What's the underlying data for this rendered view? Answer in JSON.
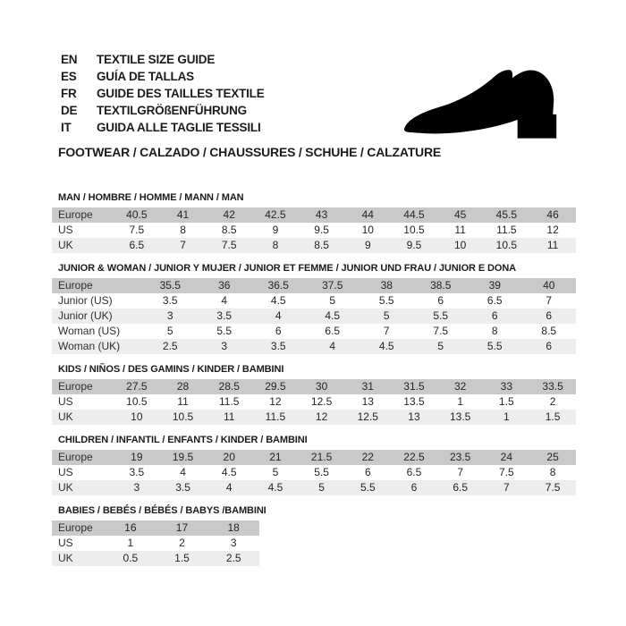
{
  "header": {
    "languages": [
      {
        "code": "EN",
        "text": "TEXTILE SIZE GUIDE"
      },
      {
        "code": "ES",
        "text": "GUÍA DE TALLAS"
      },
      {
        "code": "FR",
        "text": "GUIDE DES TAILLES TEXTILE"
      },
      {
        "code": "DE",
        "text": "TEXTILGRÖßENFÜHRUNG"
      },
      {
        "code": "IT",
        "text": "GUIDA ALLE TAGLIE TESSILI"
      }
    ],
    "subtitle": "FOOTWEAR / CALZADO / CHAUSSURES / SCHUHE / CALZATURE"
  },
  "icons": {
    "shoe": "dress-shoe-silhouette"
  },
  "colors": {
    "background": "#ffffff",
    "header_row_bg": "#c9c9c9",
    "alt_row_bg": "#ededed",
    "text": "#1c1c1c",
    "shoe": "#000000"
  },
  "tables": [
    {
      "title": "MAN / HOMBRE / HOMME / MANN / MAN",
      "header_label": "Europe",
      "header_values": [
        "40.5",
        "41",
        "42",
        "42.5",
        "43",
        "44",
        "44.5",
        "45",
        "45.5",
        "46"
      ],
      "rows": [
        {
          "label": "US",
          "values": [
            "7.5",
            "8",
            "8.5",
            "9",
            "9.5",
            "10",
            "10.5",
            "11",
            "11.5",
            "12"
          ]
        },
        {
          "label": "UK",
          "values": [
            "6.5",
            "7",
            "7.5",
            "8",
            "8.5",
            "9",
            "9.5",
            "10",
            "10.5",
            "11"
          ]
        }
      ]
    },
    {
      "title": "JUNIOR & WOMAN / JUNIOR Y MUJER / JUNIOR ET FEMME / JUNIOR UND FRAU / JUNIOR E DONA",
      "header_label": "Europe",
      "header_values": [
        "35.5",
        "36",
        "36.5",
        "37.5",
        "38",
        "38.5",
        "39",
        "40"
      ],
      "rows": [
        {
          "label": "Junior (US)",
          "values": [
            "3.5",
            "4",
            "4.5",
            "5",
            "5.5",
            "6",
            "6.5",
            "7"
          ]
        },
        {
          "label": "Junior (UK)",
          "values": [
            "3",
            "3.5",
            "4",
            "4.5",
            "5",
            "5.5",
            "6",
            "6"
          ]
        },
        {
          "label": "Woman (US)",
          "values": [
            "5",
            "5.5",
            "6",
            "6.5",
            "7",
            "7.5",
            "8",
            "8.5"
          ]
        },
        {
          "label": "Woman (UK)",
          "values": [
            "2.5",
            "3",
            "3.5",
            "4",
            "4.5",
            "5",
            "5.5",
            "6"
          ]
        }
      ]
    },
    {
      "title": "KIDS / NIÑOS / DES GAMINS / KINDER / BAMBINI",
      "header_label": "Europe",
      "header_values": [
        "27.5",
        "28",
        "28.5",
        "29.5",
        "30",
        "31",
        "31.5",
        "32",
        "33",
        "33.5"
      ],
      "rows": [
        {
          "label": "US",
          "values": [
            "10.5",
            "11",
            "11.5",
            "12",
            "12.5",
            "13",
            "13.5",
            "1",
            "1.5",
            "2"
          ]
        },
        {
          "label": "UK",
          "values": [
            "10",
            "10.5",
            "11",
            "11.5",
            "12",
            "12.5",
            "13",
            "13.5",
            "1",
            "1.5"
          ]
        }
      ]
    },
    {
      "title": "CHILDREN / INFANTIL / ENFANTS / KINDER / BAMBINI",
      "header_label": "Europe",
      "header_values": [
        "19",
        "19.5",
        "20",
        "21",
        "21.5",
        "22",
        "22.5",
        "23.5",
        "24",
        "25"
      ],
      "rows": [
        {
          "label": "US",
          "values": [
            "3.5",
            "4",
            "4.5",
            "5",
            "5.5",
            "6",
            "6.5",
            "7",
            "7.5",
            "8"
          ]
        },
        {
          "label": "UK",
          "values": [
            "3",
            "3.5",
            "4",
            "4.5",
            "5",
            "5.5",
            "6",
            "6.5",
            "7",
            "7.5"
          ]
        }
      ]
    },
    {
      "title": "BABIES  / BEBÉS / BÉBÉS / BABYS /BAMBINI",
      "header_label": "Europe",
      "header_values": [
        "16",
        "17",
        "18"
      ],
      "rows": [
        {
          "label": "US",
          "values": [
            "1",
            "2",
            "3"
          ]
        },
        {
          "label": "UK",
          "values": [
            "0.5",
            "1.5",
            "2.5"
          ]
        }
      ]
    }
  ]
}
